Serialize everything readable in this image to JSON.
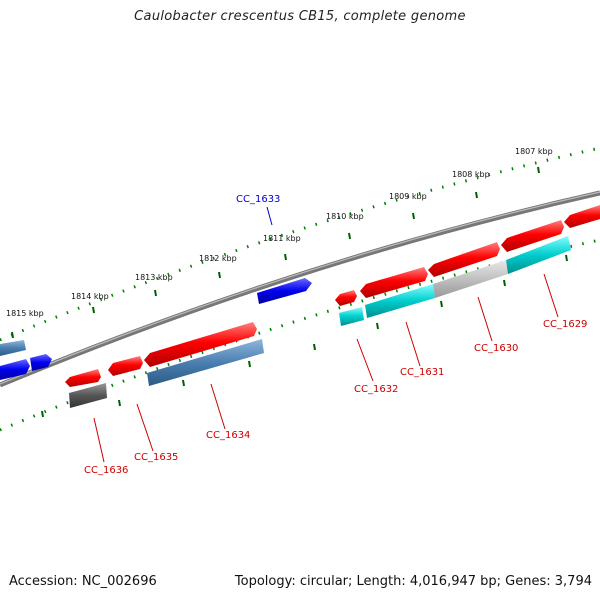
{
  "title": "Caulobacter crescentus CB15, complete genome",
  "footer": {
    "accession": "Accession: NC_002696",
    "topology": "Topology: circular; Length: 4,016,947 bp; Genes: 3,794"
  },
  "scale_labels": [
    "1815 kbp",
    "1814 kbp",
    "1813 kbp",
    "1812 kbp",
    "1811 kbp",
    "1810 kbp",
    "1809 kbp",
    "1808 kbp",
    "1807 kbp"
  ],
  "gene_labels": [
    "CC_1633",
    "CC_1636",
    "CC_1635",
    "CC_1634",
    "CC_1632",
    "CC_1631",
    "CC_1630",
    "CC_1629"
  ],
  "colors": {
    "cds_forward": "#ff0000",
    "cds_reverse": "#ff0000",
    "blast_blue": "#4a7fb0",
    "blast_cyan": "#00cccc",
    "blast_gray": "#c0c0c0",
    "blast_dark": "#555555",
    "other_gene": "#0000ee",
    "tick": "#008000",
    "backbone": "#888888"
  }
}
